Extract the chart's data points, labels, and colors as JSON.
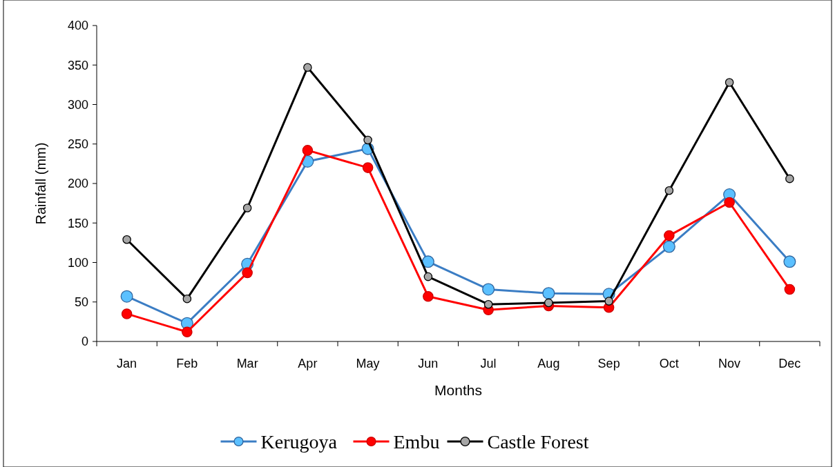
{
  "chart_data": {
    "type": "line",
    "xlabel": "Months",
    "ylabel": "Rainfall (mm)",
    "categories": [
      "Jan",
      "Feb",
      "Mar",
      "Apr",
      "May",
      "Jun",
      "Jul",
      "Aug",
      "Sep",
      "Oct",
      "Nov",
      "Dec"
    ],
    "series": [
      {
        "name": "Kerugoya",
        "color": "#3b7dc4",
        "values": [
          57,
          23,
          98,
          228,
          244,
          101,
          66,
          61,
          60,
          120,
          186,
          101
        ]
      },
      {
        "name": "Embu",
        "color": "#ff0000",
        "values": [
          35,
          12,
          87,
          242,
          220,
          57,
          40,
          45,
          43,
          134,
          176,
          66
        ]
      },
      {
        "name": "Castle Forest",
        "color": "#000000",
        "values": [
          129,
          54,
          169,
          347,
          255,
          82,
          47,
          49,
          51,
          191,
          328,
          206
        ]
      }
    ],
    "ylim": [
      0,
      400
    ],
    "yticks": [
      0,
      50,
      100,
      150,
      200,
      250,
      300,
      350,
      400
    ],
    "grid": false,
    "legend": "bottom",
    "marker": "circle",
    "line_style": "solid"
  }
}
